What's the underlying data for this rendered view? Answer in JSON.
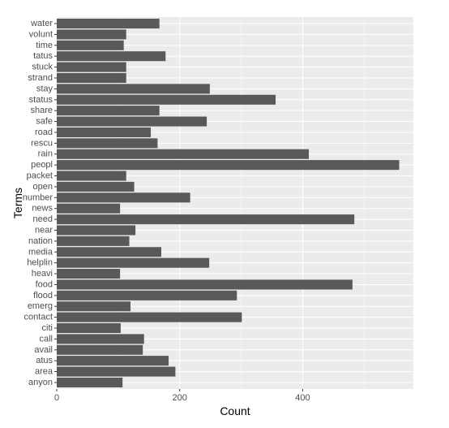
{
  "chart_data": {
    "type": "bar",
    "orientation": "horizontal",
    "xlabel": "Count",
    "ylabel": "Terms",
    "xlim": [
      0,
      580
    ],
    "x_ticks": [
      0,
      200,
      400
    ],
    "grid": true,
    "categories": [
      "water",
      "volunt",
      "time",
      "tatus",
      "stuck",
      "strand",
      "stay",
      "status",
      "share",
      "safe",
      "road",
      "rescu",
      "rain",
      "peopl",
      "packet",
      "open",
      "number",
      "news",
      "need",
      "near",
      "nation",
      "media",
      "helplin",
      "heavi",
      "food",
      "flood",
      "emerg",
      "contact",
      "citi",
      "call",
      "avail",
      "atus",
      "area",
      "anyon"
    ],
    "values": [
      167,
      113,
      109,
      177,
      113,
      113,
      249,
      356,
      167,
      244,
      153,
      164,
      410,
      557,
      113,
      126,
      217,
      103,
      484,
      128,
      118,
      170,
      248,
      103,
      481,
      293,
      120,
      301,
      104,
      142,
      140,
      182,
      193,
      107
    ]
  },
  "colors": {
    "panel_background": "#ebebeb",
    "grid_major": "#ffffff",
    "bar_fill": "#595959",
    "tick_text": "#4d4d4d",
    "tick_mark": "#333333"
  }
}
